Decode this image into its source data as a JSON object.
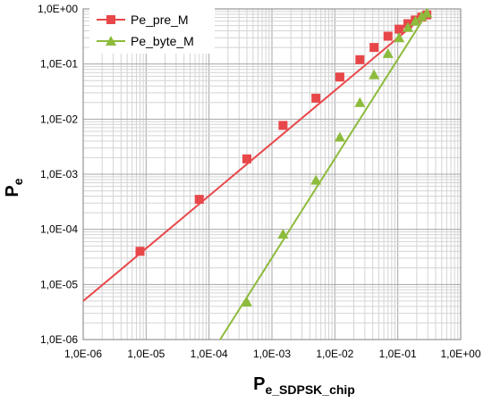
{
  "chart_data": {
    "type": "line",
    "xscale": "log",
    "yscale": "log",
    "xlim": [
      1e-06,
      1
    ],
    "ylim": [
      1e-06,
      1
    ],
    "grid": true,
    "legend_position": "top-left",
    "xlabel": {
      "main": "P",
      "sub": "e_SDPSK_chip"
    },
    "ylabel": {
      "main": "P",
      "sub": "e"
    },
    "x_ticks": [
      "1,0E-06",
      "1,0E-05",
      "1,0E-04",
      "1,0E-03",
      "1,0E-02",
      "1,0E-01",
      "1,0E+00"
    ],
    "y_ticks": [
      "1,0E-06",
      "1,0E-05",
      "1,0E-04",
      "1,0E-03",
      "1,0E-02",
      "1,0E-01",
      "1,0E+00"
    ],
    "series": [
      {
        "name": "Pe_pre_M",
        "color": "#e8474a",
        "marker": "square",
        "line_x": [
          1e-06,
          0.3
        ],
        "line_y": [
          5e-06,
          0.85
        ],
        "points": [
          [
            8e-06,
            4e-05
          ],
          [
            7e-05,
            0.00035
          ],
          [
            0.0004,
            0.0019
          ],
          [
            0.0015,
            0.0077
          ],
          [
            0.005,
            0.024
          ],
          [
            0.012,
            0.058
          ],
          [
            0.025,
            0.12
          ],
          [
            0.042,
            0.2
          ],
          [
            0.07,
            0.32
          ],
          [
            0.105,
            0.43
          ],
          [
            0.145,
            0.54
          ],
          [
            0.19,
            0.63
          ],
          [
            0.24,
            0.71
          ],
          [
            0.29,
            0.78
          ]
        ]
      },
      {
        "name": "Pe_byte_M",
        "color": "#8dbb3c",
        "marker": "triangle",
        "line_x": [
          0.00015,
          0.3
        ],
        "line_y": [
          1e-06,
          0.88
        ],
        "points": [
          [
            0.0004,
            4.8e-06
          ],
          [
            0.0015,
            8.2e-05
          ],
          [
            0.005,
            0.00078
          ],
          [
            0.012,
            0.0047
          ],
          [
            0.025,
            0.02
          ],
          [
            0.042,
            0.064
          ],
          [
            0.07,
            0.155
          ],
          [
            0.105,
            0.3
          ],
          [
            0.145,
            0.46
          ],
          [
            0.19,
            0.6
          ],
          [
            0.24,
            0.73
          ],
          [
            0.29,
            0.84
          ]
        ]
      }
    ]
  }
}
